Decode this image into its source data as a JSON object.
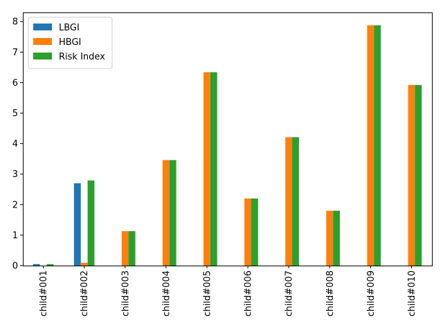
{
  "chart_data": {
    "type": "bar",
    "categories": [
      "child#001",
      "child#002",
      "child#003",
      "child#004",
      "child#005",
      "child#006",
      "child#007",
      "child#008",
      "child#009",
      "child#010"
    ],
    "series": [
      {
        "name": "LBGI",
        "color": "#1f77b4",
        "values": [
          0.05,
          2.7,
          0.0,
          0.0,
          0.0,
          0.0,
          0.0,
          0.0,
          0.0,
          0.0
        ]
      },
      {
        "name": "HBGI",
        "color": "#ff7f0e",
        "values": [
          0.0,
          0.09,
          1.13,
          3.46,
          6.34,
          2.2,
          4.21,
          1.8,
          7.88,
          5.92
        ]
      },
      {
        "name": "Risk Index",
        "color": "#2ca02c",
        "values": [
          0.05,
          2.79,
          1.13,
          3.46,
          6.34,
          2.2,
          4.21,
          1.8,
          7.88,
          5.92
        ]
      }
    ],
    "ylim": [
      0,
      8.3
    ],
    "yticks": [
      0,
      1,
      2,
      3,
      4,
      5,
      6,
      7,
      8
    ],
    "xlabel": "",
    "ylabel": "",
    "title": "",
    "grid": false,
    "legend_position": "top-left"
  }
}
